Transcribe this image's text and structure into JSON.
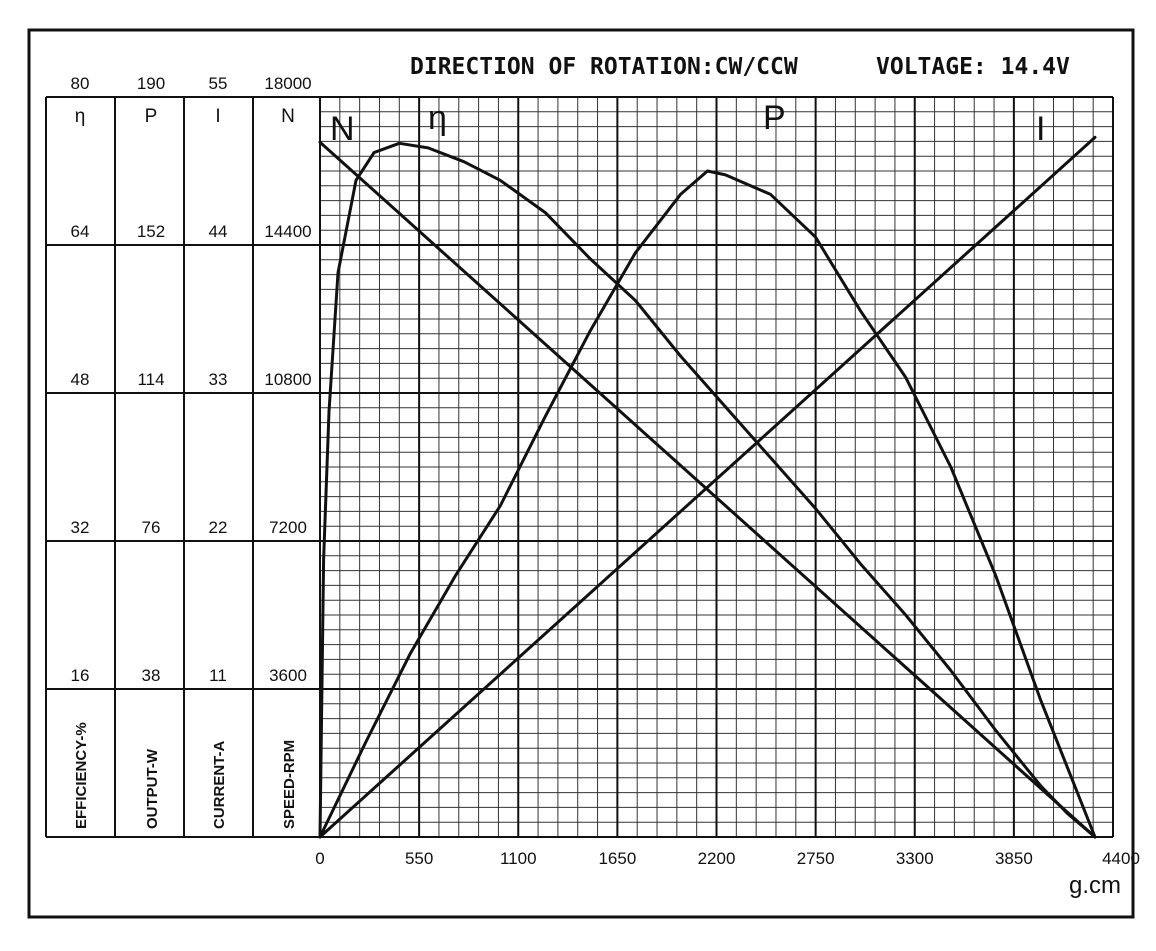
{
  "header": {
    "rotation": "DIRECTION OF ROTATION:CW/CCW",
    "voltage": "VOLTAGE: 14.4V"
  },
  "scales": {
    "efficiency": {
      "symbol": "η",
      "unit": "EFFICIENCY-%",
      "max_label": "80",
      "ticks": [
        "64",
        "48",
        "32",
        "16"
      ]
    },
    "output": {
      "symbol": "P",
      "unit": "OUTPUT-W",
      "max_label": "190",
      "ticks": [
        "152",
        "114",
        "76",
        "38"
      ]
    },
    "current": {
      "symbol": "I",
      "unit": "CURRENT-A",
      "max_label": "55",
      "ticks": [
        "44",
        "33",
        "22",
        "11"
      ]
    },
    "speed": {
      "symbol": "N",
      "unit": "SPEED-RPM",
      "max_label": "18000",
      "ticks": [
        "14400",
        "10800",
        "7200",
        "3600"
      ]
    }
  },
  "x_axis": {
    "unit": "g.cm",
    "tick_labels": [
      "0",
      "550",
      "1100",
      "1650",
      "2200",
      "2750",
      "3300",
      "3850",
      "4400"
    ]
  },
  "curve_labels": {
    "speed": "N",
    "efficiency": "η",
    "output": "P",
    "current": "I"
  },
  "chart_data": {
    "type": "line",
    "title": "",
    "xlabel": "g.cm",
    "xlim": [
      0,
      4400
    ],
    "grid": true,
    "series": [
      {
        "name": "N",
        "axis": "speed",
        "unit": "RPM",
        "x": [
          0,
          4300
        ],
        "values": [
          16900,
          0
        ]
      },
      {
        "name": "I",
        "axis": "current",
        "unit": "A",
        "x": [
          0,
          4300
        ],
        "values": [
          0,
          52
        ]
      },
      {
        "name": "P",
        "axis": "output",
        "unit": "W",
        "x": [
          0,
          250,
          500,
          750,
          1000,
          1250,
          1500,
          1750,
          2000,
          2150,
          2250,
          2500,
          2750,
          3000,
          3250,
          3500,
          3750,
          4000,
          4300
        ],
        "values": [
          0,
          24,
          47,
          67,
          85,
          108,
          130,
          150,
          165,
          171,
          170,
          165,
          154,
          135,
          118,
          95,
          67,
          35,
          0
        ]
      },
      {
        "name": "η",
        "axis": "efficiency",
        "unit": "%",
        "x": [
          0,
          20,
          50,
          100,
          200,
          300,
          440,
          600,
          800,
          1000,
          1250,
          1500,
          1750,
          2000,
          2250,
          2500,
          2750,
          3000,
          3250,
          3500,
          3750,
          4000,
          4150,
          4300
        ],
        "values": [
          0,
          30,
          46,
          61,
          71,
          74,
          75,
          74.5,
          73,
          71,
          67.5,
          62.5,
          58,
          52,
          46.5,
          41,
          35.5,
          29.5,
          24,
          18,
          11.5,
          5.5,
          2.5,
          0
        ]
      }
    ]
  }
}
